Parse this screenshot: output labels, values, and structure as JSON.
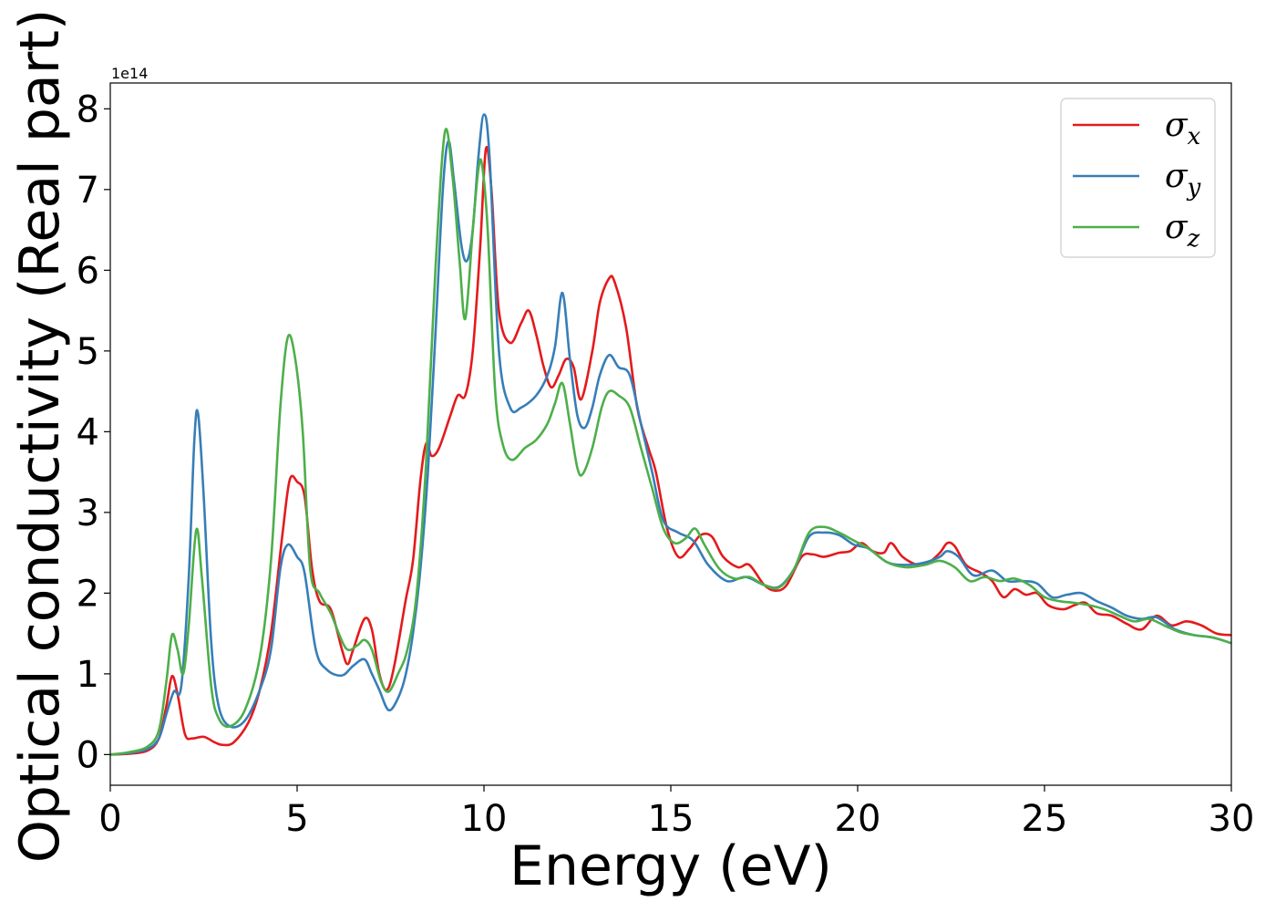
{
  "chart_data": {
    "type": "line",
    "xlabel": "Energy (eV)",
    "ylabel": "Optical conductivity (Real part)",
    "offset_label": "1e14",
    "xlim": [
      0,
      30
    ],
    "ylim": [
      -0.38,
      8.32
    ],
    "xticks": [
      0,
      5,
      10,
      15,
      20,
      25,
      30
    ],
    "yticks": [
      0,
      1,
      2,
      3,
      4,
      5,
      6,
      7,
      8
    ],
    "grid": false,
    "legend_position": "top-right",
    "series": [
      {
        "name": "σx",
        "symbol": "σ",
        "subscript": "x",
        "color": "#e41a1c",
        "points": [
          [
            0,
            0
          ],
          [
            0.5,
            0.01
          ],
          [
            1,
            0.05
          ],
          [
            1.3,
            0.2
          ],
          [
            1.5,
            0.6
          ],
          [
            1.65,
            0.97
          ],
          [
            1.8,
            0.75
          ],
          [
            2,
            0.25
          ],
          [
            2.2,
            0.2
          ],
          [
            2.5,
            0.22
          ],
          [
            2.8,
            0.15
          ],
          [
            3,
            0.12
          ],
          [
            3.3,
            0.15
          ],
          [
            3.7,
            0.4
          ],
          [
            4,
            0.8
          ],
          [
            4.3,
            1.5
          ],
          [
            4.6,
            2.7
          ],
          [
            4.8,
            3.4
          ],
          [
            5,
            3.38
          ],
          [
            5.2,
            3.2
          ],
          [
            5.4,
            2.3
          ],
          [
            5.6,
            1.9
          ],
          [
            5.9,
            1.8
          ],
          [
            6.2,
            1.3
          ],
          [
            6.35,
            1.12
          ],
          [
            6.5,
            1.3
          ],
          [
            6.8,
            1.68
          ],
          [
            7,
            1.55
          ],
          [
            7.2,
            1.0
          ],
          [
            7.4,
            0.8
          ],
          [
            7.6,
            1.1
          ],
          [
            7.9,
            1.9
          ],
          [
            8.1,
            2.4
          ],
          [
            8.3,
            3.4
          ],
          [
            8.45,
            3.85
          ],
          [
            8.6,
            3.7
          ],
          [
            8.8,
            3.8
          ],
          [
            9.1,
            4.2
          ],
          [
            9.3,
            4.45
          ],
          [
            9.5,
            4.45
          ],
          [
            9.7,
            5.0
          ],
          [
            9.9,
            6.3
          ],
          [
            10.05,
            7.5
          ],
          [
            10.2,
            7.0
          ],
          [
            10.4,
            5.5
          ],
          [
            10.7,
            5.1
          ],
          [
            11,
            5.35
          ],
          [
            11.2,
            5.5
          ],
          [
            11.4,
            5.2
          ],
          [
            11.6,
            4.8
          ],
          [
            11.8,
            4.55
          ],
          [
            12,
            4.7
          ],
          [
            12.2,
            4.9
          ],
          [
            12.4,
            4.8
          ],
          [
            12.6,
            4.4
          ],
          [
            12.9,
            5.0
          ],
          [
            13.1,
            5.6
          ],
          [
            13.35,
            5.9
          ],
          [
            13.5,
            5.85
          ],
          [
            13.8,
            5.3
          ],
          [
            14.1,
            4.3
          ],
          [
            14.4,
            3.8
          ],
          [
            14.6,
            3.5
          ],
          [
            14.9,
            2.8
          ],
          [
            15.2,
            2.45
          ],
          [
            15.5,
            2.55
          ],
          [
            15.8,
            2.72
          ],
          [
            16.1,
            2.7
          ],
          [
            16.4,
            2.45
          ],
          [
            16.8,
            2.32
          ],
          [
            17.1,
            2.35
          ],
          [
            17.5,
            2.1
          ],
          [
            17.8,
            2.03
          ],
          [
            18.1,
            2.1
          ],
          [
            18.5,
            2.45
          ],
          [
            18.8,
            2.48
          ],
          [
            19.1,
            2.45
          ],
          [
            19.5,
            2.5
          ],
          [
            19.8,
            2.52
          ],
          [
            20.1,
            2.62
          ],
          [
            20.4,
            2.52
          ],
          [
            20.7,
            2.5
          ],
          [
            20.9,
            2.62
          ],
          [
            21.2,
            2.45
          ],
          [
            21.6,
            2.35
          ],
          [
            21.9,
            2.38
          ],
          [
            22.2,
            2.5
          ],
          [
            22.4,
            2.62
          ],
          [
            22.6,
            2.58
          ],
          [
            22.9,
            2.35
          ],
          [
            23.3,
            2.25
          ],
          [
            23.6,
            2.15
          ],
          [
            23.9,
            1.95
          ],
          [
            24.2,
            2.05
          ],
          [
            24.5,
            1.98
          ],
          [
            24.8,
            2.0
          ],
          [
            25.1,
            1.85
          ],
          [
            25.5,
            1.8
          ],
          [
            25.8,
            1.85
          ],
          [
            26.1,
            1.88
          ],
          [
            26.4,
            1.75
          ],
          [
            26.8,
            1.72
          ],
          [
            27.2,
            1.62
          ],
          [
            27.6,
            1.55
          ],
          [
            28,
            1.72
          ],
          [
            28.4,
            1.6
          ],
          [
            28.8,
            1.65
          ],
          [
            29.2,
            1.6
          ],
          [
            29.6,
            1.5
          ],
          [
            30,
            1.48
          ]
        ]
      },
      {
        "name": "σy",
        "symbol": "σ",
        "subscript": "y",
        "color": "#377eb8",
        "points": [
          [
            0,
            0
          ],
          [
            0.5,
            0.02
          ],
          [
            1,
            0.07
          ],
          [
            1.3,
            0.2
          ],
          [
            1.5,
            0.5
          ],
          [
            1.7,
            0.78
          ],
          [
            1.9,
            0.85
          ],
          [
            2.1,
            2.2
          ],
          [
            2.25,
            3.9
          ],
          [
            2.35,
            4.22
          ],
          [
            2.5,
            3.2
          ],
          [
            2.7,
            1.4
          ],
          [
            2.9,
            0.6
          ],
          [
            3.2,
            0.35
          ],
          [
            3.6,
            0.42
          ],
          [
            4,
            0.8
          ],
          [
            4.3,
            1.3
          ],
          [
            4.55,
            2.3
          ],
          [
            4.75,
            2.6
          ],
          [
            5,
            2.45
          ],
          [
            5.2,
            2.25
          ],
          [
            5.5,
            1.3
          ],
          [
            5.8,
            1.05
          ],
          [
            6.2,
            0.98
          ],
          [
            6.5,
            1.1
          ],
          [
            6.8,
            1.18
          ],
          [
            7,
            1.0
          ],
          [
            7.2,
            0.8
          ],
          [
            7.45,
            0.55
          ],
          [
            7.7,
            0.7
          ],
          [
            7.9,
            0.98
          ],
          [
            8.1,
            1.5
          ],
          [
            8.3,
            2.3
          ],
          [
            8.5,
            3.5
          ],
          [
            8.7,
            5.2
          ],
          [
            8.9,
            7.0
          ],
          [
            9.05,
            7.6
          ],
          [
            9.2,
            7.1
          ],
          [
            9.4,
            6.3
          ],
          [
            9.55,
            6.12
          ],
          [
            9.7,
            6.5
          ],
          [
            9.85,
            7.4
          ],
          [
            10,
            7.93
          ],
          [
            10.15,
            7.4
          ],
          [
            10.4,
            5.0
          ],
          [
            10.7,
            4.3
          ],
          [
            11,
            4.3
          ],
          [
            11.4,
            4.45
          ],
          [
            11.7,
            4.7
          ],
          [
            11.9,
            5.05
          ],
          [
            12.1,
            5.72
          ],
          [
            12.3,
            4.9
          ],
          [
            12.5,
            4.2
          ],
          [
            12.7,
            4.05
          ],
          [
            12.9,
            4.3
          ],
          [
            13.1,
            4.7
          ],
          [
            13.35,
            4.95
          ],
          [
            13.6,
            4.8
          ],
          [
            13.9,
            4.7
          ],
          [
            14.2,
            4.1
          ],
          [
            14.5,
            3.5
          ],
          [
            14.8,
            2.9
          ],
          [
            15.2,
            2.75
          ],
          [
            15.6,
            2.65
          ],
          [
            16,
            2.35
          ],
          [
            16.5,
            2.15
          ],
          [
            17,
            2.2
          ],
          [
            17.5,
            2.1
          ],
          [
            17.9,
            2.08
          ],
          [
            18.3,
            2.3
          ],
          [
            18.7,
            2.7
          ],
          [
            19.1,
            2.75
          ],
          [
            19.5,
            2.72
          ],
          [
            19.9,
            2.6
          ],
          [
            20.3,
            2.55
          ],
          [
            20.8,
            2.38
          ],
          [
            21.3,
            2.35
          ],
          [
            21.8,
            2.38
          ],
          [
            22.2,
            2.45
          ],
          [
            22.4,
            2.52
          ],
          [
            22.7,
            2.45
          ],
          [
            23.1,
            2.22
          ],
          [
            23.6,
            2.28
          ],
          [
            24,
            2.15
          ],
          [
            24.4,
            2.15
          ],
          [
            24.8,
            2.12
          ],
          [
            25.2,
            1.95
          ],
          [
            25.6,
            1.98
          ],
          [
            26,
            2.0
          ],
          [
            26.4,
            1.9
          ],
          [
            26.8,
            1.82
          ],
          [
            27.2,
            1.72
          ],
          [
            27.6,
            1.68
          ],
          [
            28,
            1.7
          ],
          [
            28.5,
            1.55
          ],
          [
            29,
            1.48
          ],
          [
            29.5,
            1.45
          ],
          [
            30,
            1.38
          ]
        ]
      },
      {
        "name": "σz",
        "symbol": "σ",
        "subscript": "z",
        "color": "#4daf4a",
        "points": [
          [
            0,
            0
          ],
          [
            0.5,
            0.03
          ],
          [
            1,
            0.1
          ],
          [
            1.3,
            0.3
          ],
          [
            1.5,
            0.9
          ],
          [
            1.65,
            1.48
          ],
          [
            1.8,
            1.3
          ],
          [
            1.95,
            1.0
          ],
          [
            2.1,
            1.6
          ],
          [
            2.3,
            2.78
          ],
          [
            2.45,
            2.2
          ],
          [
            2.7,
            0.85
          ],
          [
            2.9,
            0.45
          ],
          [
            3.2,
            0.35
          ],
          [
            3.6,
            0.55
          ],
          [
            4,
            1.2
          ],
          [
            4.3,
            2.4
          ],
          [
            4.55,
            4.3
          ],
          [
            4.75,
            5.17
          ],
          [
            4.95,
            4.9
          ],
          [
            5.15,
            4.0
          ],
          [
            5.35,
            2.3
          ],
          [
            5.6,
            2.0
          ],
          [
            5.9,
            1.75
          ],
          [
            6.3,
            1.32
          ],
          [
            6.6,
            1.35
          ],
          [
            6.8,
            1.42
          ],
          [
            7,
            1.3
          ],
          [
            7.25,
            0.9
          ],
          [
            7.45,
            0.78
          ],
          [
            7.7,
            1.0
          ],
          [
            7.95,
            1.3
          ],
          [
            8.2,
            2.0
          ],
          [
            8.45,
            3.6
          ],
          [
            8.7,
            6.0
          ],
          [
            8.95,
            7.7
          ],
          [
            9.15,
            7.2
          ],
          [
            9.35,
            6.1
          ],
          [
            9.5,
            5.4
          ],
          [
            9.7,
            6.5
          ],
          [
            9.85,
            7.25
          ],
          [
            9.95,
            7.3
          ],
          [
            10.1,
            6.5
          ],
          [
            10.3,
            4.5
          ],
          [
            10.5,
            3.85
          ],
          [
            10.75,
            3.65
          ],
          [
            11.1,
            3.8
          ],
          [
            11.4,
            3.9
          ],
          [
            11.7,
            4.1
          ],
          [
            11.9,
            4.35
          ],
          [
            12.1,
            4.6
          ],
          [
            12.3,
            4.1
          ],
          [
            12.5,
            3.55
          ],
          [
            12.65,
            3.48
          ],
          [
            12.9,
            3.8
          ],
          [
            13.15,
            4.3
          ],
          [
            13.35,
            4.5
          ],
          [
            13.6,
            4.45
          ],
          [
            13.9,
            4.3
          ],
          [
            14.2,
            3.8
          ],
          [
            14.5,
            3.3
          ],
          [
            14.8,
            2.8
          ],
          [
            15.1,
            2.62
          ],
          [
            15.4,
            2.68
          ],
          [
            15.65,
            2.8
          ],
          [
            15.9,
            2.6
          ],
          [
            16.3,
            2.3
          ],
          [
            16.7,
            2.18
          ],
          [
            17.1,
            2.2
          ],
          [
            17.5,
            2.1
          ],
          [
            17.9,
            2.07
          ],
          [
            18.3,
            2.3
          ],
          [
            18.7,
            2.75
          ],
          [
            19.1,
            2.82
          ],
          [
            19.5,
            2.75
          ],
          [
            19.9,
            2.65
          ],
          [
            20.3,
            2.55
          ],
          [
            20.8,
            2.38
          ],
          [
            21.3,
            2.32
          ],
          [
            21.8,
            2.35
          ],
          [
            22.2,
            2.4
          ],
          [
            22.6,
            2.32
          ],
          [
            23,
            2.15
          ],
          [
            23.4,
            2.2
          ],
          [
            23.8,
            2.15
          ],
          [
            24.2,
            2.18
          ],
          [
            24.6,
            2.1
          ],
          [
            25,
            1.95
          ],
          [
            25.4,
            1.9
          ],
          [
            25.8,
            1.88
          ],
          [
            26.2,
            1.85
          ],
          [
            26.6,
            1.8
          ],
          [
            27,
            1.72
          ],
          [
            27.4,
            1.65
          ],
          [
            27.8,
            1.68
          ],
          [
            28.2,
            1.6
          ],
          [
            28.6,
            1.52
          ],
          [
            29,
            1.48
          ],
          [
            29.5,
            1.45
          ],
          [
            30,
            1.38
          ]
        ]
      }
    ]
  }
}
